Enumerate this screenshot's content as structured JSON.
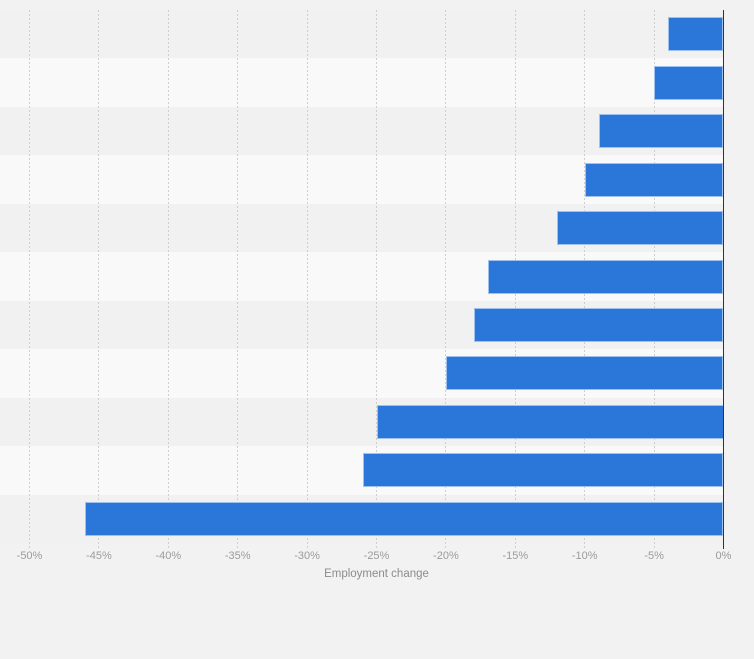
{
  "chart_data": {
    "type": "bar",
    "orientation": "horizontal",
    "title": "",
    "xlabel": "Employment change",
    "ylabel": "",
    "unit": "percent",
    "categories": [
      "",
      "",
      "",
      "",
      "",
      "",
      "",
      "",
      "",
      "",
      ""
    ],
    "values": [
      -4,
      -5,
      -9,
      -10,
      -12,
      -17,
      -18,
      -20,
      -25,
      -26,
      -46
    ],
    "xlim": [
      -52.1,
      0
    ],
    "x_ticks": [
      {
        "value": -50,
        "label": "-50%"
      },
      {
        "value": -45,
        "label": "-45%"
      },
      {
        "value": -40,
        "label": "-40%"
      },
      {
        "value": -35,
        "label": "-35%"
      },
      {
        "value": -30,
        "label": "-30%"
      },
      {
        "value": -25,
        "label": "-25%"
      },
      {
        "value": -20,
        "label": "-20%"
      },
      {
        "value": -15,
        "label": "-15%"
      },
      {
        "value": -10,
        "label": "-10%"
      },
      {
        "value": -5,
        "label": "-5%"
      },
      {
        "value": 0,
        "label": "0%"
      }
    ],
    "grid": "vertical-dashed",
    "legend": "none",
    "row_banding": true
  },
  "colors": {
    "background": "#f2f2f2",
    "stripe_dark": "#f1f1f1",
    "stripe_light": "#f9f9f9",
    "bar": "#2b76d9",
    "gridline": "#cfcfcf",
    "zero_axis_line": "#333333",
    "tick_label": "#9b9b9b",
    "axis_title": "#8c8c8c"
  }
}
